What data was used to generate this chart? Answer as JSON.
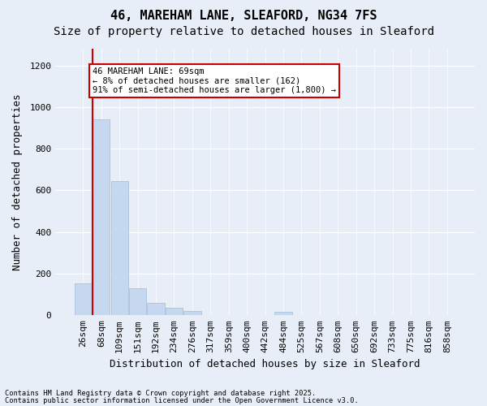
{
  "title1": "46, MAREHAM LANE, SLEAFORD, NG34 7FS",
  "title2": "Size of property relative to detached houses in Sleaford",
  "xlabel": "Distribution of detached houses by size in Sleaford",
  "ylabel": "Number of detached properties",
  "bins": [
    "26sqm",
    "68sqm",
    "109sqm",
    "151sqm",
    "192sqm",
    "234sqm",
    "276sqm",
    "317sqm",
    "359sqm",
    "400sqm",
    "442sqm",
    "484sqm",
    "525sqm",
    "567sqm",
    "608sqm",
    "650sqm",
    "692sqm",
    "733sqm",
    "775sqm",
    "816sqm",
    "858sqm"
  ],
  "values": [
    152,
    940,
    645,
    130,
    60,
    38,
    20,
    0,
    0,
    0,
    0,
    15,
    0,
    0,
    0,
    0,
    0,
    0,
    0,
    0,
    0
  ],
  "bar_color": "#c5d8f0",
  "bar_edge_color": "#a0bcd8",
  "vline_x_index": 1,
  "vline_color": "#cc0000",
  "annotation_text": "46 MAREHAM LANE: 69sqm\n← 8% of detached houses are smaller (162)\n91% of semi-detached houses are larger (1,800) →",
  "annotation_box_color": "#ffffff",
  "annotation_box_edge": "#cc0000",
  "footnote1": "Contains HM Land Registry data © Crown copyright and database right 2025.",
  "footnote2": "Contains public sector information licensed under the Open Government Licence v3.0.",
  "bg_color": "#e8eef8",
  "plot_bg_color": "#e8eef8",
  "ylim": [
    0,
    1280
  ],
  "yticks": [
    0,
    200,
    400,
    600,
    800,
    1000,
    1200
  ],
  "title1_fontsize": 11,
  "title2_fontsize": 10,
  "axis_fontsize": 9,
  "tick_fontsize": 8
}
